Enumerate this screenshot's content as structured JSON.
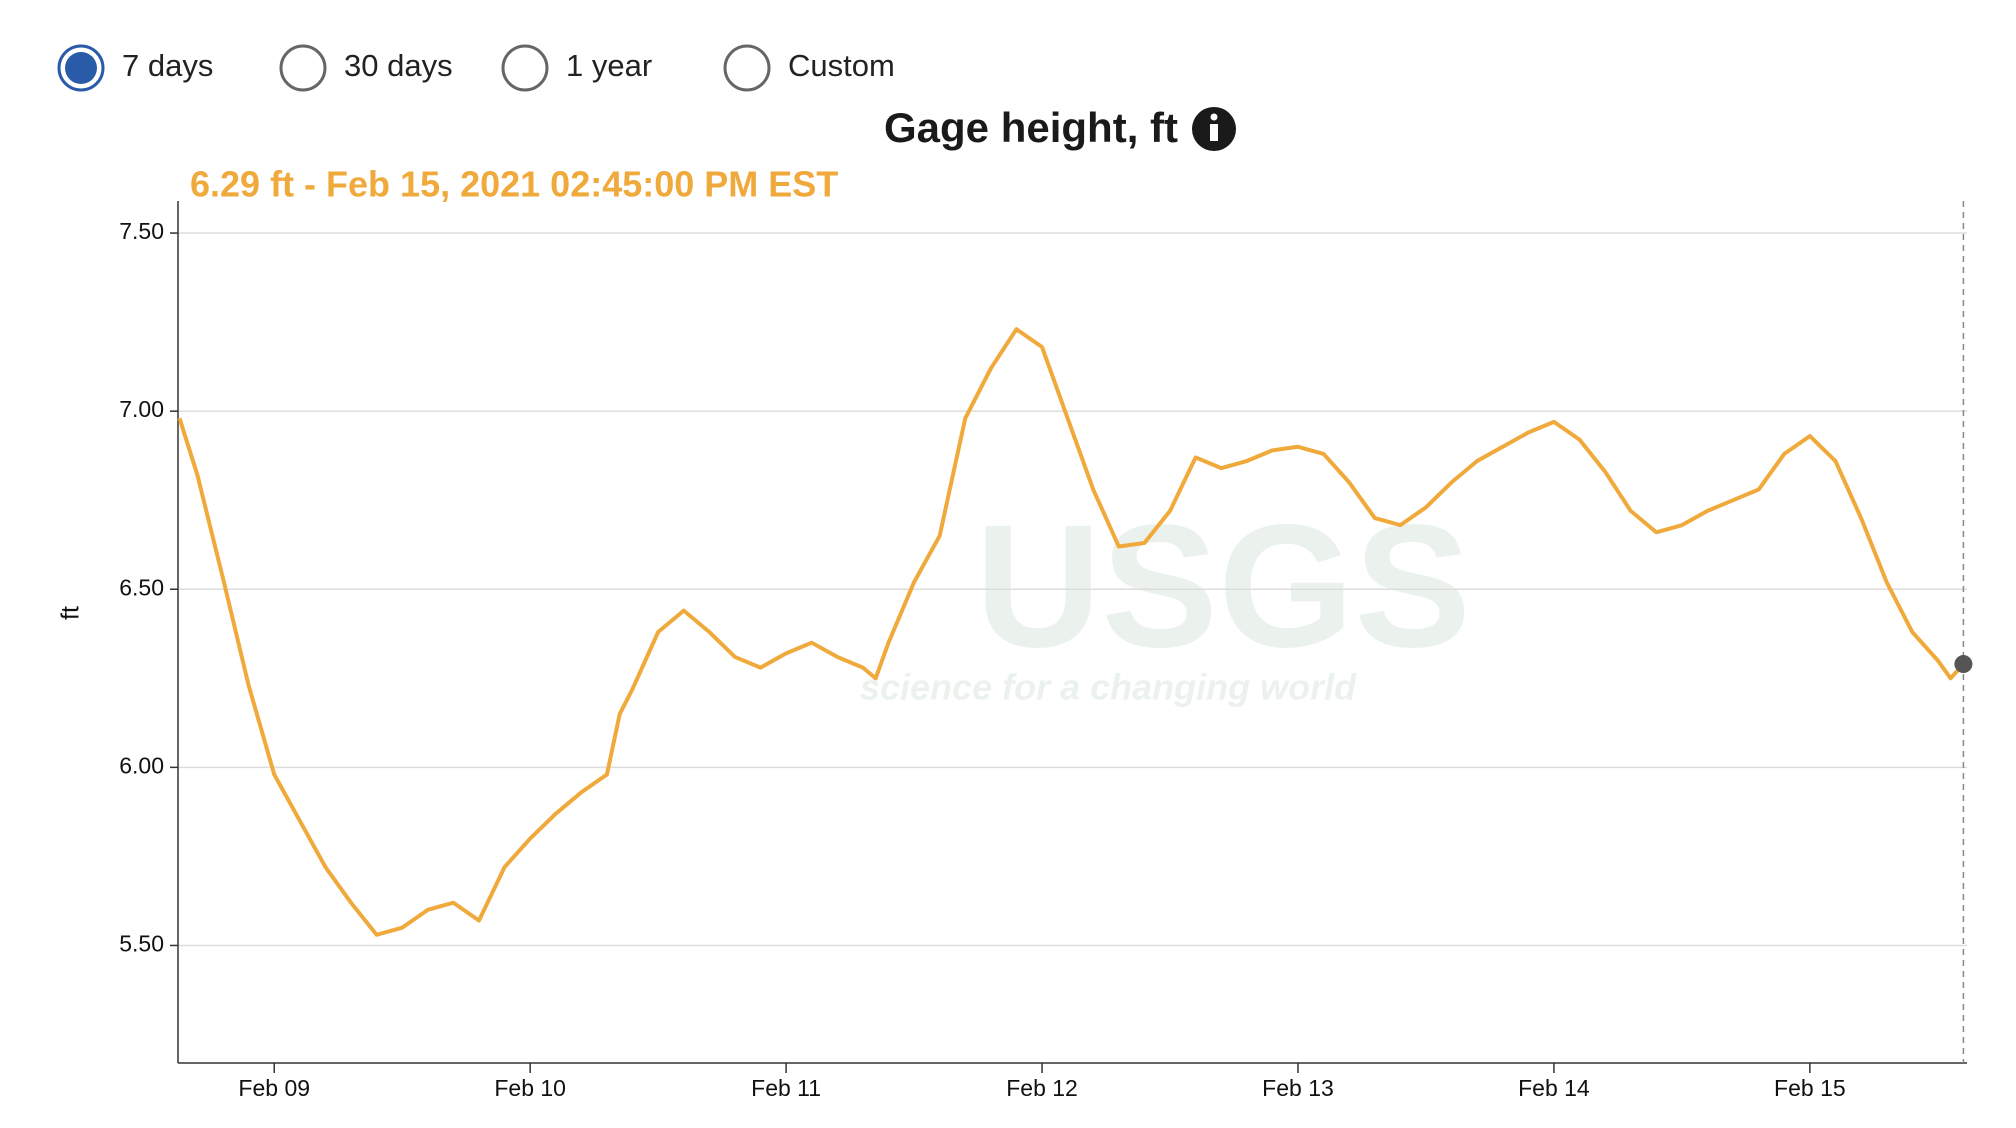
{
  "controls": {
    "options": [
      "7 days",
      "30 days",
      "1 year",
      "Custom"
    ],
    "selected": 0
  },
  "chart_data": {
    "type": "line",
    "title": "Gage height, ft",
    "tooltip": "6.29 ft - Feb 15, 2021 02:45:00 PM EST",
    "y_label": "ft",
    "watermark": {
      "logo": "USGS",
      "tagline": "science for a changing world"
    },
    "color": "#f0a93b",
    "x": [
      8.63,
      8.7,
      8.8,
      8.9,
      9.0,
      9.1,
      9.2,
      9.3,
      9.4,
      9.5,
      9.6,
      9.7,
      9.8,
      9.9,
      10.0,
      10.1,
      10.2,
      10.3,
      10.35,
      10.4,
      10.5,
      10.6,
      10.7,
      10.8,
      10.9,
      11.0,
      11.1,
      11.2,
      11.3,
      11.35,
      11.4,
      11.5,
      11.6,
      11.7,
      11.8,
      11.9,
      12.0,
      12.1,
      12.2,
      12.3,
      12.4,
      12.5,
      12.6,
      12.7,
      12.8,
      12.9,
      13.0,
      13.1,
      13.2,
      13.3,
      13.4,
      13.5,
      13.6,
      13.7,
      13.8,
      13.9,
      14.0,
      14.1,
      14.2,
      14.3,
      14.4,
      14.5,
      14.6,
      14.7,
      14.8,
      14.9,
      15.0,
      15.1,
      15.2,
      15.3,
      15.4,
      15.5,
      15.55,
      15.6
    ],
    "values": [
      6.98,
      6.82,
      6.53,
      6.23,
      5.98,
      5.85,
      5.72,
      5.62,
      5.53,
      5.55,
      5.6,
      5.62,
      5.57,
      5.72,
      5.8,
      5.87,
      5.93,
      5.98,
      6.15,
      6.22,
      6.38,
      6.44,
      6.38,
      6.31,
      6.28,
      6.32,
      6.35,
      6.31,
      6.28,
      6.25,
      6.35,
      6.52,
      6.65,
      6.98,
      7.12,
      7.23,
      7.18,
      6.98,
      6.78,
      6.62,
      6.63,
      6.72,
      6.87,
      6.84,
      6.86,
      6.89,
      6.9,
      6.88,
      6.8,
      6.7,
      6.68,
      6.73,
      6.8,
      6.86,
      6.9,
      6.94,
      6.97,
      6.92,
      6.83,
      6.72,
      6.66,
      6.68,
      6.72,
      6.75,
      6.78,
      6.88,
      6.93,
      6.86,
      6.7,
      6.52,
      6.38,
      6.3,
      6.25,
      6.29
    ],
    "xlim": [
      8.624,
      15.614
    ],
    "ylim": [
      5.17,
      7.59
    ],
    "xticks": [
      {
        "value": 9,
        "label": "Feb 09"
      },
      {
        "value": 10,
        "label": "Feb 10"
      },
      {
        "value": 11,
        "label": "Feb 11"
      },
      {
        "value": 12,
        "label": "Feb 12"
      },
      {
        "value": 13,
        "label": "Feb 13"
      },
      {
        "value": 14,
        "label": "Feb 14"
      },
      {
        "value": 15,
        "label": "Feb 15"
      }
    ],
    "yticks": [
      {
        "value": 5.5,
        "label": "5.50"
      },
      {
        "value": 6,
        "label": "6.00"
      },
      {
        "value": 6.5,
        "label": "6.50"
      },
      {
        "value": 7,
        "label": "7.00"
      },
      {
        "value": 7.5,
        "label": "7.50"
      }
    ],
    "grid": true
  }
}
